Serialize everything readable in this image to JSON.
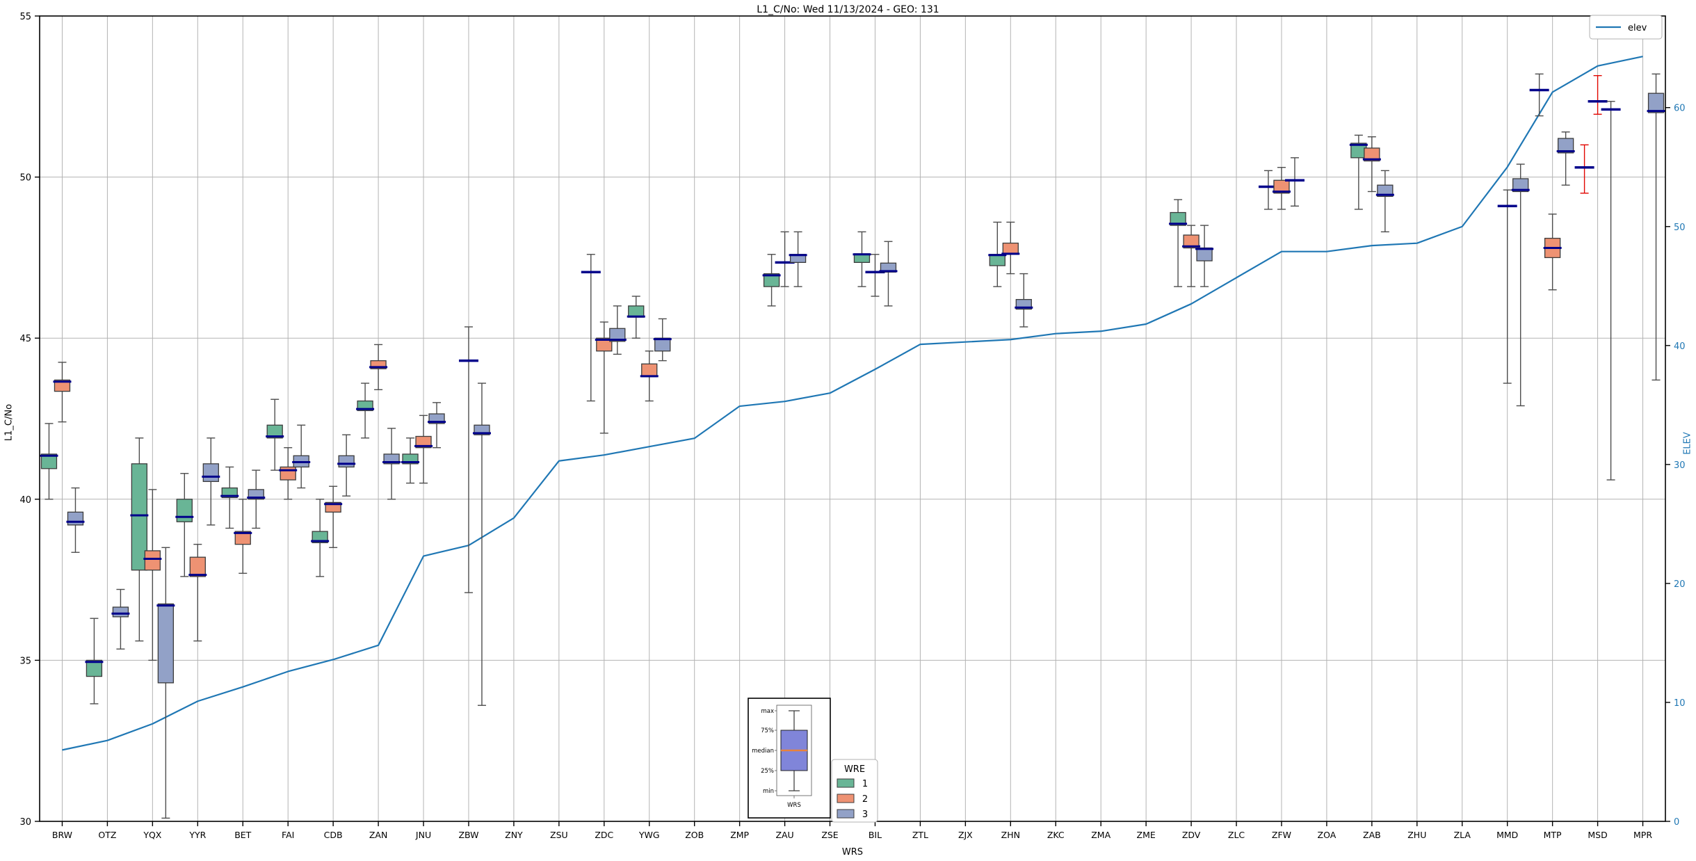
{
  "title": "L1_C/No: Wed 11/13/2024 - GEO: 131",
  "axes": {
    "x_label": "WRS",
    "y_left_label": "L1_C/No",
    "y_right_label": "ELEV",
    "y_left_ticks": [
      30,
      35,
      40,
      45,
      50,
      55
    ],
    "y_left_range": [
      30,
      55
    ],
    "y_right_ticks": [
      0,
      10,
      20,
      30,
      40,
      50,
      60
    ],
    "y_right_range": [
      0,
      67.7
    ],
    "grid": true,
    "grid_color": "#b3b3b3",
    "right_tick_color": "#1f77b4"
  },
  "legend_elev": {
    "label": "elev",
    "line_color": "#1f77b4"
  },
  "legend_wre": {
    "title": "WRE",
    "entries": [
      {
        "label": "1",
        "color": "#69b596"
      },
      {
        "label": "2",
        "color": "#ee9273"
      },
      {
        "label": "3",
        "color": "#92a1c7"
      }
    ]
  },
  "inset_key": {
    "labels": {
      "max": "max",
      "p75": "75%",
      "median": "median",
      "p25": "25%",
      "min": "min"
    },
    "x_label": "WRS",
    "box_color": "#8085d9",
    "median_color": "#e8823c"
  },
  "style": {
    "median_color": "#00008b",
    "box_edge_color": "#3c3c3c",
    "whisker_color": "#4d4d4d",
    "whisker_red": "#e10600",
    "elev_color": "#1f77b4"
  },
  "chart_data": {
    "type": "boxplot+line",
    "title": "L1_C/No: Wed 11/13/2024 - GEO: 131",
    "xlabel": "WRS",
    "ylabel_left": "L1_C/No",
    "ylabel_right": "ELEV",
    "ylim_left": [
      30,
      55
    ],
    "ylim_right": [
      0,
      67.7
    ],
    "categories": [
      "BRW",
      "OTZ",
      "YQX",
      "YYR",
      "BET",
      "FAI",
      "CDB",
      "ZAN",
      "JNU",
      "ZBW",
      "ZNY",
      "ZSU",
      "ZDC",
      "YWG",
      "ZOB",
      "ZMP",
      "ZAU",
      "ZSE",
      "BIL",
      "ZTL",
      "ZJX",
      "ZHN",
      "ZKC",
      "ZMA",
      "ZME",
      "ZDV",
      "ZLC",
      "ZFW",
      "ZOA",
      "ZAB",
      "ZHU",
      "ZLA",
      "MMD",
      "MTP",
      "MSD",
      "MPR"
    ],
    "wre_series": [
      "1",
      "2",
      "3"
    ],
    "boxes": [
      {
        "st": "BRW",
        "wre": 1,
        "q1": 40.95,
        "q3": 41.4,
        "med": 41.35,
        "min": 40.0,
        "max": 42.35
      },
      {
        "st": "BRW",
        "wre": 2,
        "q1": 43.35,
        "q3": 43.7,
        "med": 43.65,
        "min": 42.4,
        "max": 44.25
      },
      {
        "st": "BRW",
        "wre": 3,
        "q1": 39.2,
        "q3": 39.6,
        "med": 39.3,
        "min": 38.35,
        "max": 40.35
      },
      {
        "st": "OTZ",
        "wre": 1,
        "q1": 34.5,
        "q3": 35.0,
        "med": 34.95,
        "min": 33.65,
        "max": 36.3
      },
      {
        "st": "OTZ",
        "wre": 3,
        "q1": 36.35,
        "q3": 36.65,
        "med": 36.45,
        "min": 35.35,
        "max": 37.2
      },
      {
        "st": "YQX",
        "wre": 1,
        "q1": 37.8,
        "q3": 41.1,
        "med": 39.5,
        "min": 35.6,
        "max": 41.9
      },
      {
        "st": "YQX",
        "wre": 2,
        "q1": 37.8,
        "q3": 38.4,
        "med": 38.15,
        "min": 35.0,
        "max": 40.3
      },
      {
        "st": "YQX",
        "wre": 3,
        "q1": 34.3,
        "q3": 36.75,
        "med": 36.7,
        "min": 30.1,
        "max": 38.5
      },
      {
        "st": "YYR",
        "wre": 1,
        "q1": 39.3,
        "q3": 40.0,
        "med": 39.45,
        "min": 37.6,
        "max": 40.8
      },
      {
        "st": "YYR",
        "wre": 2,
        "q1": 37.6,
        "q3": 38.2,
        "med": 37.65,
        "min": 35.6,
        "max": 38.6
      },
      {
        "st": "YYR",
        "wre": 3,
        "q1": 40.55,
        "q3": 41.1,
        "med": 40.7,
        "min": 39.2,
        "max": 41.9
      },
      {
        "st": "BET",
        "wre": 1,
        "q1": 40.05,
        "q3": 40.35,
        "med": 40.1,
        "min": 39.1,
        "max": 41.0
      },
      {
        "st": "BET",
        "wre": 2,
        "q1": 38.6,
        "q3": 39.0,
        "med": 38.95,
        "min": 37.7,
        "max": 40.0
      },
      {
        "st": "BET",
        "wre": 3,
        "q1": 40.0,
        "q3": 40.3,
        "med": 40.05,
        "min": 39.1,
        "max": 40.9
      },
      {
        "st": "FAI",
        "wre": 1,
        "q1": 41.9,
        "q3": 42.3,
        "med": 41.95,
        "min": 40.9,
        "max": 43.1
      },
      {
        "st": "FAI",
        "wre": 2,
        "q1": 40.6,
        "q3": 41.0,
        "med": 40.9,
        "min": 40.0,
        "max": 41.6
      },
      {
        "st": "FAI",
        "wre": 3,
        "q1": 41.0,
        "q3": 41.35,
        "med": 41.15,
        "min": 40.35,
        "max": 42.3
      },
      {
        "st": "CDB",
        "wre": 1,
        "q1": 38.65,
        "q3": 39.0,
        "med": 38.7,
        "min": 37.6,
        "max": 40.0
      },
      {
        "st": "CDB",
        "wre": 2,
        "q1": 39.6,
        "q3": 39.9,
        "med": 39.85,
        "min": 38.5,
        "max": 40.4
      },
      {
        "st": "CDB",
        "wre": 3,
        "q1": 41.0,
        "q3": 41.35,
        "med": 41.1,
        "min": 40.1,
        "max": 42.0
      },
      {
        "st": "ZAN",
        "wre": 1,
        "q1": 42.75,
        "q3": 43.05,
        "med": 42.8,
        "min": 41.9,
        "max": 43.6
      },
      {
        "st": "ZAN",
        "wre": 2,
        "q1": 44.05,
        "q3": 44.3,
        "med": 44.1,
        "min": 43.4,
        "max": 44.8
      },
      {
        "st": "ZAN",
        "wre": 3,
        "q1": 41.1,
        "q3": 41.4,
        "med": 41.15,
        "min": 40.0,
        "max": 42.2
      },
      {
        "st": "JNU",
        "wre": 1,
        "q1": 41.1,
        "q3": 41.4,
        "med": 41.15,
        "min": 40.5,
        "max": 41.9
      },
      {
        "st": "JNU",
        "wre": 2,
        "q1": 41.6,
        "q3": 41.95,
        "med": 41.65,
        "min": 40.5,
        "max": 42.6
      },
      {
        "st": "JNU",
        "wre": 3,
        "q1": 42.35,
        "q3": 42.65,
        "med": 42.4,
        "min": 41.6,
        "max": 43.0
      },
      {
        "st": "ZBW",
        "wre": 2,
        "q1": 44.3,
        "q3": 44.3,
        "med": 44.3,
        "min": 37.1,
        "max": 45.35
      },
      {
        "st": "ZBW",
        "wre": 3,
        "q1": 42.0,
        "q3": 42.3,
        "med": 42.05,
        "min": 33.6,
        "max": 43.6
      },
      {
        "st": "ZDC",
        "wre": 1,
        "q1": 47.05,
        "q3": 47.05,
        "med": 47.05,
        "min": 43.05,
        "max": 47.6
      },
      {
        "st": "ZDC",
        "wre": 2,
        "q1": 44.6,
        "q3": 45.0,
        "med": 44.95,
        "min": 42.05,
        "max": 45.5
      },
      {
        "st": "ZDC",
        "wre": 3,
        "q1": 44.9,
        "q3": 45.3,
        "med": 44.95,
        "min": 44.5,
        "max": 46.0
      },
      {
        "st": "YWG",
        "wre": 1,
        "q1": 45.65,
        "q3": 46.0,
        "med": 45.67,
        "min": 45.0,
        "max": 46.3
      },
      {
        "st": "YWG",
        "wre": 2,
        "q1": 43.8,
        "q3": 44.2,
        "med": 43.82,
        "min": 43.05,
        "max": 44.6
      },
      {
        "st": "YWG",
        "wre": 3,
        "q1": 44.6,
        "q3": 45.0,
        "med": 44.97,
        "min": 44.3,
        "max": 45.6
      },
      {
        "st": "ZAU",
        "wre": 1,
        "q1": 46.6,
        "q3": 47.0,
        "med": 46.95,
        "min": 46.0,
        "max": 47.6
      },
      {
        "st": "ZAU",
        "wre": 2,
        "q1": 47.35,
        "q3": 47.35,
        "med": 47.35,
        "min": 46.6,
        "max": 48.3
      },
      {
        "st": "ZAU",
        "wre": 3,
        "q1": 47.35,
        "q3": 47.6,
        "med": 47.58,
        "min": 46.6,
        "max": 48.3
      },
      {
        "st": "BIL",
        "wre": 1,
        "q1": 47.35,
        "q3": 47.62,
        "med": 47.6,
        "min": 46.6,
        "max": 48.3
      },
      {
        "st": "BIL",
        "wre": 2,
        "q1": 47.05,
        "q3": 47.05,
        "med": 47.05,
        "min": 46.3,
        "max": 47.6
      },
      {
        "st": "BIL",
        "wre": 3,
        "q1": 47.05,
        "q3": 47.33,
        "med": 47.08,
        "min": 46.0,
        "max": 48.0
      },
      {
        "st": "ZHN",
        "wre": 1,
        "q1": 47.25,
        "q3": 47.6,
        "med": 47.58,
        "min": 46.6,
        "max": 48.6
      },
      {
        "st": "ZHN",
        "wre": 2,
        "q1": 47.6,
        "q3": 47.95,
        "med": 47.62,
        "min": 47.0,
        "max": 48.6
      },
      {
        "st": "ZHN",
        "wre": 3,
        "q1": 45.9,
        "q3": 46.2,
        "med": 45.95,
        "min": 45.35,
        "max": 47.0
      },
      {
        "st": "ZDV",
        "wre": 1,
        "q1": 48.5,
        "q3": 48.9,
        "med": 48.55,
        "min": 46.6,
        "max": 49.3
      },
      {
        "st": "ZDV",
        "wre": 2,
        "q1": 47.8,
        "q3": 48.2,
        "med": 47.85,
        "min": 46.6,
        "max": 48.5
      },
      {
        "st": "ZDV",
        "wre": 3,
        "q1": 47.4,
        "q3": 47.8,
        "med": 47.77,
        "min": 46.6,
        "max": 48.5
      },
      {
        "st": "ZFW",
        "wre": 1,
        "q1": 49.7,
        "q3": 49.7,
        "med": 49.7,
        "min": 49.0,
        "max": 50.2
      },
      {
        "st": "ZFW",
        "wre": 2,
        "q1": 49.5,
        "q3": 49.9,
        "med": 49.55,
        "min": 49.0,
        "max": 50.3
      },
      {
        "st": "ZFW",
        "wre": 3,
        "q1": 49.9,
        "q3": 49.9,
        "med": 49.9,
        "min": 49.1,
        "max": 50.6
      },
      {
        "st": "ZAB",
        "wre": 1,
        "q1": 50.6,
        "q3": 51.05,
        "med": 51.0,
        "min": 49.0,
        "max": 51.3
      },
      {
        "st": "ZAB",
        "wre": 2,
        "q1": 50.5,
        "q3": 50.9,
        "med": 50.55,
        "min": 49.55,
        "max": 51.25
      },
      {
        "st": "ZAB",
        "wre": 3,
        "q1": 49.4,
        "q3": 49.75,
        "med": 49.45,
        "min": 48.3,
        "max": 50.2
      },
      {
        "st": "MMD",
        "wre": 2,
        "q1": 49.1,
        "q3": 49.1,
        "med": 49.1,
        "min": 43.6,
        "max": 49.6
      },
      {
        "st": "MMD",
        "wre": 3,
        "q1": 49.55,
        "q3": 49.95,
        "med": 49.6,
        "min": 42.9,
        "max": 50.4
      },
      {
        "st": "MTP",
        "wre": 1,
        "q1": 52.7,
        "q3": 52.7,
        "med": 52.7,
        "min": 51.9,
        "max": 53.2
      },
      {
        "st": "MTP",
        "wre": 2,
        "q1": 47.5,
        "q3": 48.1,
        "med": 47.8,
        "min": 46.5,
        "max": 48.85
      },
      {
        "st": "MTP",
        "wre": 3,
        "q1": 50.75,
        "q3": 51.2,
        "med": 50.8,
        "min": 49.75,
        "max": 51.4
      },
      {
        "st": "MSD",
        "wre": 1,
        "q1": 50.3,
        "q3": 50.3,
        "med": 50.3,
        "min": 49.5,
        "max": 51.0,
        "red": true
      },
      {
        "st": "MSD",
        "wre": 2,
        "q1": 52.35,
        "q3": 52.35,
        "med": 52.35,
        "min": 51.95,
        "max": 53.15,
        "red": true
      },
      {
        "st": "MSD",
        "wre": 3,
        "q1": 52.1,
        "q3": 52.1,
        "med": 52.1,
        "min": 40.6,
        "max": 52.35
      },
      {
        "st": "MPR",
        "wre": 3,
        "q1": 52.0,
        "q3": 52.6,
        "med": 52.05,
        "min": 43.7,
        "max": 53.2
      }
    ],
    "elev_line": {
      "name": "elev",
      "values": [
        6.0,
        6.8,
        8.2,
        10.1,
        11.3,
        12.6,
        13.6,
        14.8,
        22.3,
        23.2,
        25.5,
        30.3,
        30.8,
        31.5,
        32.2,
        34.9,
        35.3,
        36.0,
        38.0,
        40.1,
        40.3,
        40.5,
        41.0,
        41.2,
        41.8,
        43.5,
        45.7,
        47.9,
        47.9,
        48.4,
        48.6,
        50.0,
        55.0,
        61.3,
        63.5,
        64.3
      ]
    }
  }
}
